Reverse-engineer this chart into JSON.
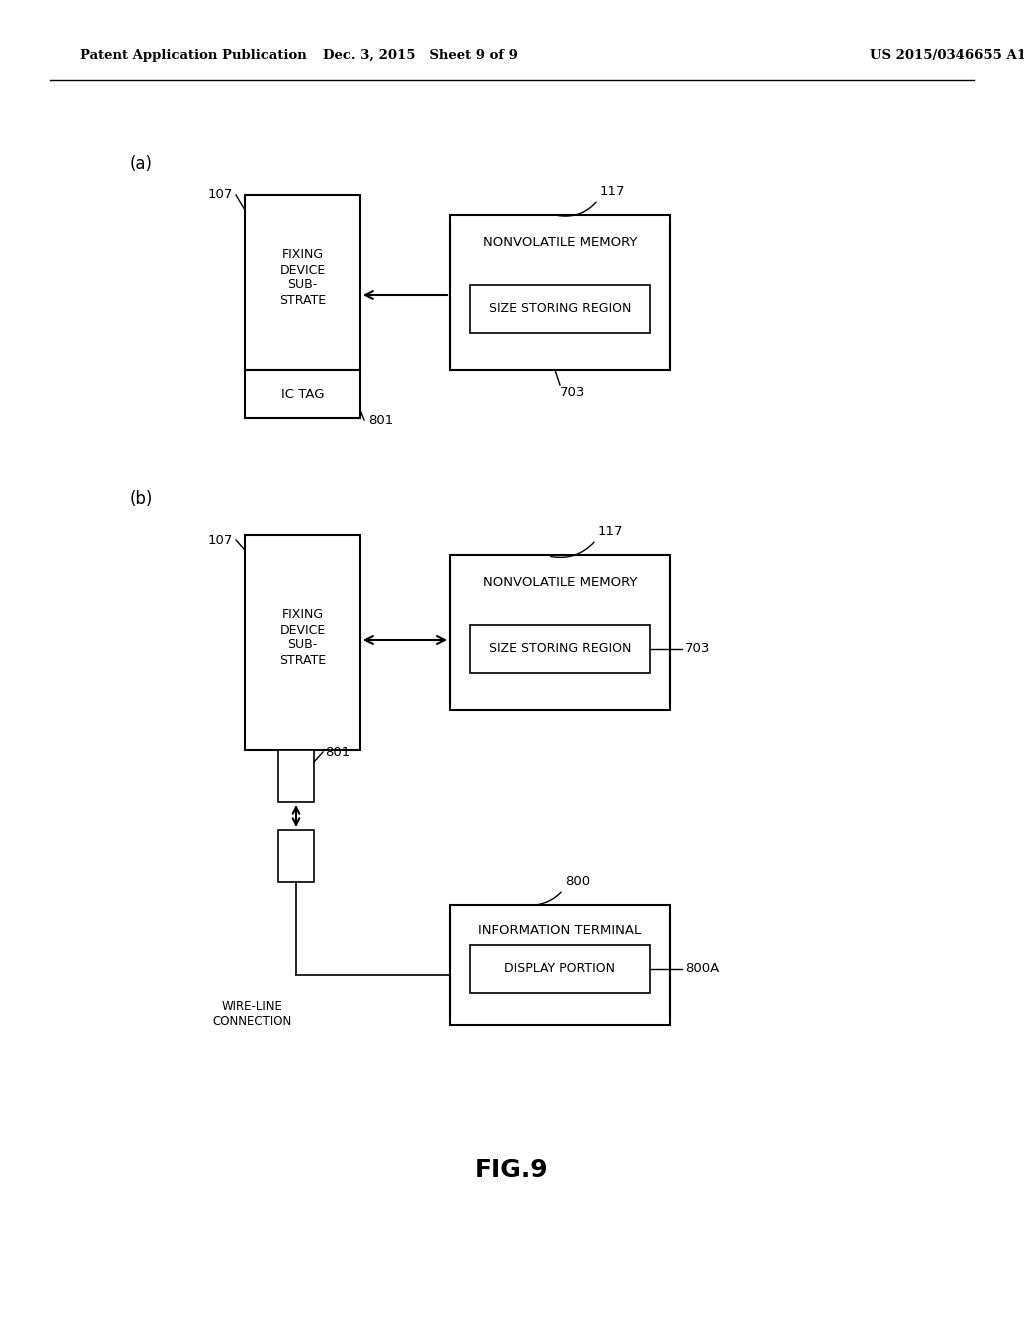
{
  "header_left": "Patent Application Publication",
  "header_mid": "Dec. 3, 2015   Sheet 9 of 9",
  "header_right": "US 2015/0346655 A1",
  "fig_label": "FIG.9",
  "bg_color": "#ffffff"
}
